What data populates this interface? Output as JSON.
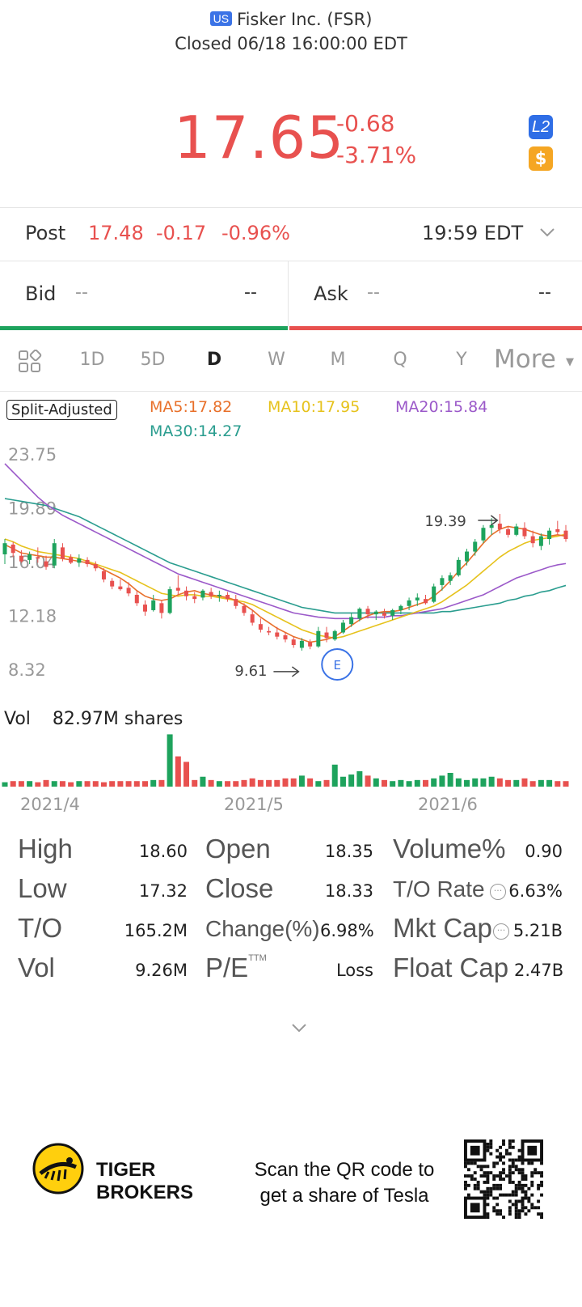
{
  "header": {
    "market_badge": "US",
    "company": "Fisker Inc. (FSR)",
    "status": "Closed 06/18 16:00:00 EDT",
    "price": "17.65",
    "change": "-0.68",
    "change_pct": "-3.71%",
    "l2_badge": "L2",
    "dollar_badge": "$"
  },
  "post": {
    "label": "Post",
    "price": "17.48",
    "change": "-0.17",
    "change_pct": "-0.96%",
    "time": "19:59 EDT"
  },
  "quote": {
    "bid_label": "Bid",
    "bid_price": "--",
    "bid_size": "--",
    "ask_label": "Ask",
    "ask_price": "--",
    "ask_size": "--"
  },
  "tabs": {
    "items": [
      "1D",
      "5D",
      "D",
      "W",
      "M",
      "Q",
      "Y"
    ],
    "active": "D",
    "more": "More"
  },
  "legend": {
    "split": "Split-Adjusted",
    "ma5": "MA5:17.82",
    "ma10": "MA10:17.95",
    "ma20": "MA20:15.84",
    "ma30": "MA30:14.27"
  },
  "colors": {
    "red": "#e8514f",
    "green": "#1ea35d",
    "ma5": "#e8702a",
    "ma10": "#e6c21c",
    "ma20": "#9b59c9",
    "ma30": "#2a9d8f",
    "earnings": "#3b73e6"
  },
  "chart_data": {
    "type": "candlestick",
    "y_ticks": [
      "23.75",
      "19.89",
      "16.04",
      "12.18",
      "8.32"
    ],
    "ylim": [
      8.32,
      23.75
    ],
    "x_labels": [
      "2021/4",
      "2021/5",
      "2021/6"
    ],
    "high_annotation": "19.39",
    "low_annotation": "9.61",
    "earnings_marker": "E",
    "candles": [
      [
        16.5,
        17.6,
        15.8,
        17.3
      ],
      [
        17.2,
        17.4,
        16.3,
        16.6
      ],
      [
        16.4,
        16.8,
        15.9,
        16.0
      ],
      [
        16.1,
        16.7,
        15.8,
        16.5
      ],
      [
        16.3,
        17.0,
        15.9,
        16.2
      ],
      [
        16.0,
        16.4,
        15.4,
        15.6
      ],
      [
        15.7,
        17.6,
        15.5,
        17.3
      ],
      [
        17.0,
        17.3,
        16.0,
        16.2
      ],
      [
        16.3,
        16.5,
        15.8,
        15.9
      ],
      [
        15.9,
        16.5,
        15.6,
        16.2
      ],
      [
        16.1,
        16.3,
        15.6,
        15.8
      ],
      [
        15.8,
        16.0,
        15.3,
        15.5
      ],
      [
        15.3,
        15.5,
        14.5,
        14.7
      ],
      [
        14.6,
        14.8,
        14.0,
        14.2
      ],
      [
        14.2,
        14.7,
        13.9,
        14.0
      ],
      [
        14.1,
        14.5,
        13.5,
        13.7
      ],
      [
        13.6,
        13.9,
        12.8,
        13.0
      ],
      [
        12.9,
        13.2,
        12.1,
        12.4
      ],
      [
        12.5,
        13.6,
        12.4,
        13.2
      ],
      [
        13.0,
        13.2,
        11.9,
        12.3
      ],
      [
        12.3,
        14.2,
        12.2,
        14.0
      ],
      [
        14.1,
        15.0,
        13.6,
        13.9
      ],
      [
        13.9,
        14.2,
        13.2,
        13.5
      ],
      [
        13.5,
        13.8,
        13.0,
        13.3
      ],
      [
        13.4,
        14.0,
        13.2,
        13.9
      ],
      [
        13.8,
        14.1,
        13.3,
        13.5
      ],
      [
        13.5,
        13.9,
        13.1,
        13.6
      ],
      [
        13.6,
        13.8,
        13.1,
        13.3
      ],
      [
        13.3,
        13.6,
        12.6,
        12.8
      ],
      [
        12.8,
        13.0,
        12.1,
        12.3
      ],
      [
        12.2,
        12.5,
        11.4,
        11.6
      ],
      [
        11.5,
        11.9,
        10.9,
        11.1
      ],
      [
        11.0,
        11.3,
        10.7,
        10.9
      ],
      [
        10.9,
        11.3,
        10.4,
        10.6
      ],
      [
        10.7,
        10.9,
        10.2,
        10.4
      ],
      [
        10.4,
        10.6,
        9.8,
        10.0
      ],
      [
        9.8,
        10.5,
        9.6,
        10.3
      ],
      [
        10.2,
        10.4,
        9.7,
        9.9
      ],
      [
        9.9,
        11.3,
        9.8,
        11.0
      ],
      [
        10.9,
        11.3,
        10.2,
        10.5
      ],
      [
        10.4,
        11.1,
        10.3,
        11.0
      ],
      [
        10.9,
        11.8,
        10.8,
        11.6
      ],
      [
        11.5,
        12.3,
        11.3,
        12.0
      ],
      [
        11.9,
        12.7,
        11.7,
        12.6
      ],
      [
        12.6,
        12.8,
        11.9,
        12.2
      ],
      [
        12.2,
        12.5,
        11.8,
        12.4
      ],
      [
        12.3,
        12.6,
        11.9,
        12.1
      ],
      [
        12.1,
        12.6,
        11.8,
        12.5
      ],
      [
        12.5,
        12.9,
        12.2,
        12.8
      ],
      [
        12.8,
        13.4,
        12.5,
        13.2
      ],
      [
        13.2,
        13.7,
        12.8,
        13.4
      ],
      [
        13.3,
        13.6,
        12.9,
        13.0
      ],
      [
        13.1,
        14.4,
        13.0,
        14.2
      ],
      [
        14.3,
        15.0,
        13.9,
        14.8
      ],
      [
        14.6,
        15.2,
        14.3,
        15.0
      ],
      [
        15.0,
        16.3,
        14.9,
        16.1
      ],
      [
        16.0,
        16.9,
        15.7,
        16.7
      ],
      [
        16.7,
        17.6,
        16.4,
        17.4
      ],
      [
        17.5,
        18.6,
        17.3,
        18.4
      ],
      [
        18.4,
        19.1,
        17.9,
        18.6
      ],
      [
        18.7,
        19.4,
        18.0,
        18.3
      ],
      [
        18.3,
        18.5,
        17.7,
        17.9
      ],
      [
        17.9,
        18.7,
        17.8,
        18.5
      ],
      [
        18.4,
        18.8,
        17.6,
        17.8
      ],
      [
        17.8,
        18.2,
        17.0,
        17.3
      ],
      [
        17.1,
        18.0,
        16.8,
        17.8
      ],
      [
        17.6,
        18.4,
        17.2,
        18.2
      ],
      [
        18.3,
        18.9,
        17.9,
        18.1
      ],
      [
        18.2,
        18.6,
        17.4,
        17.6
      ]
    ],
    "ma5": [
      17.2,
      16.9,
      16.6,
      16.5,
      16.4,
      16.3,
      16.3,
      16.2,
      16.1,
      16.0,
      15.9,
      15.7,
      15.4,
      15.1,
      14.8,
      14.4,
      13.9,
      13.5,
      13.3,
      13.2,
      13.3,
      13.6,
      13.8,
      13.9,
      13.7,
      13.6,
      13.5,
      13.4,
      13.2,
      12.9,
      12.5,
      12.0,
      11.6,
      11.2,
      10.9,
      10.6,
      10.4,
      10.2,
      10.3,
      10.4,
      10.6,
      11.0,
      11.4,
      11.8,
      12.1,
      12.3,
      12.4,
      12.4,
      12.5,
      12.7,
      12.9,
      13.1,
      13.5,
      14.0,
      14.6,
      15.3,
      15.9,
      16.6,
      17.3,
      17.9,
      18.3,
      18.5,
      18.4,
      18.3,
      18.1,
      17.9,
      17.8,
      17.9,
      17.8
    ],
    "ma10": [
      17.6,
      17.4,
      17.1,
      16.9,
      16.7,
      16.6,
      16.5,
      16.4,
      16.3,
      16.2,
      16.0,
      15.8,
      15.6,
      15.4,
      15.2,
      14.9,
      14.6,
      14.3,
      14.0,
      13.7,
      13.6,
      13.5,
      13.6,
      13.6,
      13.5,
      13.5,
      13.4,
      13.3,
      13.2,
      13.1,
      12.9,
      12.6,
      12.3,
      12.0,
      11.7,
      11.4,
      11.1,
      10.9,
      10.7,
      10.6,
      10.5,
      10.6,
      10.8,
      11.0,
      11.2,
      11.4,
      11.6,
      11.8,
      12.0,
      12.2,
      12.4,
      12.6,
      12.8,
      13.1,
      13.5,
      13.9,
      14.3,
      14.8,
      15.3,
      15.8,
      16.3,
      16.7,
      17.0,
      17.3,
      17.5,
      17.6,
      17.7,
      17.8,
      17.95
    ],
    "ma20": [
      23.0,
      22.4,
      21.8,
      21.2,
      20.6,
      20.1,
      19.7,
      19.3,
      19.0,
      18.7,
      18.4,
      18.1,
      17.8,
      17.5,
      17.2,
      16.9,
      16.6,
      16.3,
      16.0,
      15.7,
      15.4,
      15.1,
      14.9,
      14.7,
      14.5,
      14.3,
      14.1,
      13.9,
      13.7,
      13.5,
      13.3,
      13.1,
      12.9,
      12.7,
      12.5,
      12.3,
      12.2,
      12.1,
      12.0,
      11.95,
      11.9,
      11.9,
      11.9,
      11.9,
      12.0,
      12.0,
      12.0,
      12.1,
      12.1,
      12.2,
      12.3,
      12.4,
      12.5,
      12.6,
      12.8,
      13.0,
      13.2,
      13.4,
      13.6,
      13.9,
      14.2,
      14.5,
      14.8,
      15.0,
      15.2,
      15.4,
      15.6,
      15.75,
      15.84
    ],
    "ma30": [
      20.5,
      20.4,
      20.3,
      20.2,
      20.1,
      20.0,
      19.8,
      19.6,
      19.4,
      19.2,
      18.9,
      18.6,
      18.3,
      18.0,
      17.7,
      17.4,
      17.1,
      16.8,
      16.5,
      16.2,
      15.9,
      15.7,
      15.5,
      15.3,
      15.1,
      14.9,
      14.7,
      14.5,
      14.3,
      14.1,
      13.9,
      13.7,
      13.5,
      13.3,
      13.1,
      12.9,
      12.7,
      12.6,
      12.5,
      12.4,
      12.3,
      12.3,
      12.3,
      12.3,
      12.3,
      12.3,
      12.3,
      12.3,
      12.3,
      12.3,
      12.3,
      12.3,
      12.3,
      12.4,
      12.4,
      12.5,
      12.6,
      12.7,
      12.8,
      12.9,
      13.0,
      13.2,
      13.3,
      13.5,
      13.6,
      13.8,
      13.9,
      14.1,
      14.27
    ]
  },
  "volume": {
    "label": "Vol",
    "value": "82.97M shares",
    "bars": [
      0.08,
      0.1,
      0.1,
      0.1,
      0.08,
      0.12,
      0.1,
      0.1,
      0.08,
      0.1,
      0.1,
      0.1,
      0.08,
      0.1,
      0.1,
      0.1,
      0.1,
      0.1,
      0.12,
      0.12,
      0.95,
      0.55,
      0.45,
      0.12,
      0.18,
      0.12,
      0.1,
      0.1,
      0.1,
      0.12,
      0.15,
      0.12,
      0.12,
      0.12,
      0.15,
      0.15,
      0.2,
      0.15,
      0.1,
      0.12,
      0.4,
      0.18,
      0.22,
      0.28,
      0.2,
      0.15,
      0.12,
      0.1,
      0.12,
      0.1,
      0.12,
      0.12,
      0.15,
      0.2,
      0.25,
      0.15,
      0.12,
      0.15,
      0.15,
      0.18,
      0.15,
      0.12,
      0.12,
      0.15,
      0.1,
      0.12,
      0.12,
      0.1,
      0.1
    ]
  },
  "stats": [
    {
      "label": "High",
      "value": "18.60"
    },
    {
      "label": "Open",
      "value": "18.35"
    },
    {
      "label": "Volume%",
      "value": "0.90"
    },
    {
      "label": "Low",
      "value": "17.32"
    },
    {
      "label": "Close",
      "value": "18.33"
    },
    {
      "label": "T/O Rate",
      "value": "6.63%"
    },
    {
      "label": "T/O",
      "value": "165.2M"
    },
    {
      "label": "Change(%)",
      "value": "6.98%"
    },
    {
      "label": "Mkt Cap",
      "value": "5.21B"
    },
    {
      "label": "Vol",
      "value": "9.26M"
    },
    {
      "label": "P/E",
      "value": "Loss",
      "superscript": "TTM"
    },
    {
      "label": "Float Cap",
      "value": "2.47B"
    }
  ],
  "footer": {
    "brand_line1": "TIGER",
    "brand_line2": "BROKERS",
    "promo_line1": "Scan the QR code to",
    "promo_line2": "get a share of Tesla"
  }
}
